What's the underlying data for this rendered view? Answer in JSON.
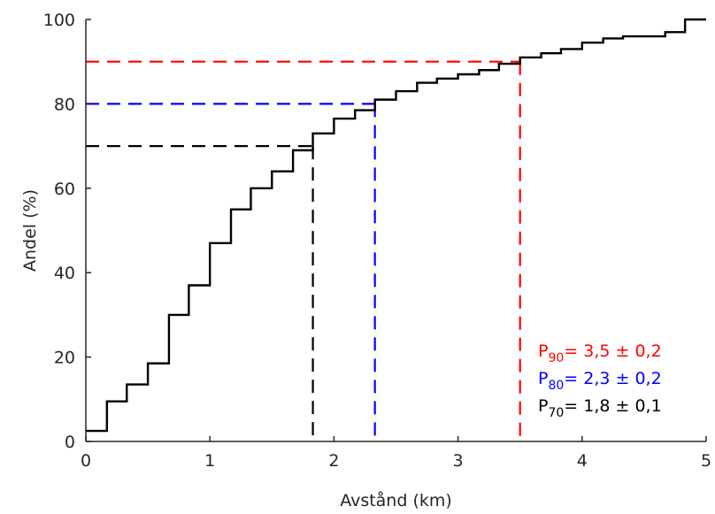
{
  "chart_data": {
    "type": "line",
    "step": true,
    "xlabel": "Avstånd (km)",
    "ylabel": "Andel (%)",
    "xlim": [
      0,
      5
    ],
    "ylim": [
      0,
      100
    ],
    "x_ticks": [
      0,
      1,
      2,
      3,
      4,
      5
    ],
    "x_tick_labels": [
      "0",
      "1",
      "2",
      "3",
      "4",
      "5"
    ],
    "y_ticks": [
      0,
      20,
      40,
      60,
      80,
      100
    ],
    "y_tick_labels": [
      "0",
      "20",
      "40",
      "60",
      "80",
      "100"
    ],
    "grid": false,
    "series": [
      {
        "color": "#000000",
        "step_x": [
          0,
          0.17,
          0.33,
          0.5,
          0.67,
          0.83,
          1.0,
          1.17,
          1.33,
          1.5,
          1.67,
          1.83,
          2.0,
          2.17,
          2.33,
          2.5,
          2.67,
          2.83,
          3.0,
          3.17,
          3.33,
          3.5,
          3.67,
          3.83,
          4.0,
          4.17,
          4.33,
          4.5,
          4.67,
          4.83,
          5.0
        ],
        "step_y": [
          2.5,
          9.5,
          13.5,
          18.5,
          30,
          37,
          47,
          55,
          60,
          64,
          69,
          73,
          76.5,
          78.5,
          81,
          83,
          85,
          86,
          87,
          88,
          89.5,
          91,
          92,
          93,
          94.5,
          95.5,
          96,
          96,
          97,
          100,
          100
        ]
      }
    ],
    "reference_lines": [
      {
        "percentile": 90,
        "x": 3.5,
        "color": "#ff0000"
      },
      {
        "percentile": 80,
        "x": 2.33,
        "color": "#0000ff"
      },
      {
        "percentile": 70,
        "x": 1.83,
        "color": "#000000"
      }
    ],
    "annotations": [
      {
        "p": "P",
        "sub": "90",
        "text": "= 3,5 ± 0,2",
        "color": "#ff0000"
      },
      {
        "p": "P",
        "sub": "80",
        "text": "= 2,3 ± 0,2",
        "color": "#0000ff"
      },
      {
        "p": "P",
        "sub": "70",
        "text": "= 1,8 ± 0,1",
        "color": "#000000"
      }
    ]
  }
}
